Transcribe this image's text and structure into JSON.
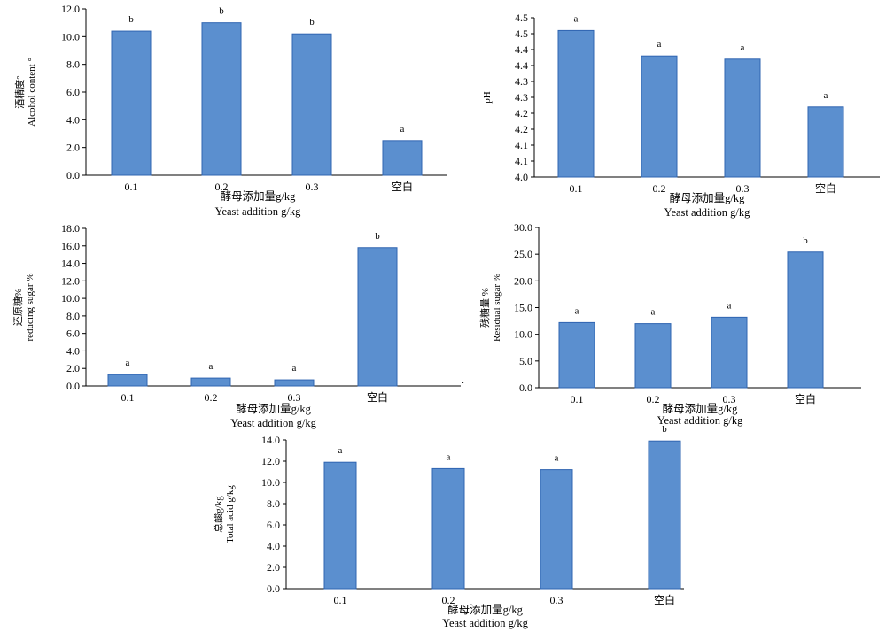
{
  "chart_data": [
    {
      "type": "bar",
      "categories": [
        "0.1",
        "0.2",
        "0.3",
        "空白"
      ],
      "values": [
        10.4,
        11.0,
        10.2,
        2.5
      ],
      "significance": [
        "b",
        "b",
        "b",
        "a"
      ],
      "ylabel": [
        "酒精度°",
        "Alcohol content °"
      ],
      "xlabel": [
        "酵母添加量g/kg",
        "Yeast addition g/kg"
      ],
      "ylim": [
        0,
        12
      ],
      "yticks": [
        "0.0",
        "2.0",
        "4.0",
        "6.0",
        "8.0",
        "10.0",
        "12.0"
      ],
      "color": "#5b8fcf"
    },
    {
      "type": "bar",
      "categories": [
        "0.1",
        "0.2",
        "0.3",
        "空白"
      ],
      "values": [
        4.46,
        4.38,
        4.37,
        4.22
      ],
      "significance": [
        "a",
        "a",
        "a",
        "a"
      ],
      "ylabel": [
        "pH"
      ],
      "xlabel": [
        "酵母添加量g/kg",
        "Yeast addition g/kg"
      ],
      "ylim": [
        4.0,
        4.5
      ],
      "yticks": [
        "4.0",
        "4.1",
        "4.1",
        "4.2",
        "4.2",
        "4.3",
        "4.3",
        "4.4",
        "4.4",
        "4.5",
        "4.5"
      ],
      "color": "#5b8fcf"
    },
    {
      "type": "bar",
      "categories": [
        "0.1",
        "0.2",
        "0.3",
        "空白"
      ],
      "values": [
        1.3,
        0.9,
        0.7,
        15.8
      ],
      "significance": [
        "a",
        "a",
        "a",
        "b"
      ],
      "ylabel": [
        "还原糖%",
        "reducing sugar %"
      ],
      "xlabel": [
        "酵母添加量g/kg",
        "Yeast addition g/kg"
      ],
      "ylim": [
        0,
        18
      ],
      "yticks": [
        "0.0",
        "2.0",
        "4.0",
        "6.0",
        "8.0",
        "10.0",
        "12.0",
        "14.0",
        "16.0",
        "18.0"
      ],
      "color": "#5b8fcf"
    },
    {
      "type": "bar",
      "categories": [
        "0.1",
        "0.2",
        "0.3",
        "空白"
      ],
      "values": [
        12.2,
        12.0,
        13.2,
        25.4
      ],
      "significance": [
        "a",
        "a",
        "a",
        "b"
      ],
      "ylabel": [
        "残糖量 %",
        "Residual sugar %"
      ],
      "xlabel": [
        "酵母添加量g/kg",
        "Yeast addition g/kg"
      ],
      "ylim": [
        0,
        30
      ],
      "yticks": [
        "0.0",
        "5.0",
        "10.0",
        "15.0",
        "20.0",
        "25.0",
        "30.0"
      ],
      "color": "#5b8fcf"
    },
    {
      "type": "bar",
      "categories": [
        "0.1",
        "0.2",
        "0.3",
        "空白"
      ],
      "values": [
        11.9,
        11.3,
        11.2,
        13.9
      ],
      "significance": [
        "a",
        "a",
        "a",
        "b"
      ],
      "ylabel": [
        "总酸g/kg",
        "Total acid g/kg"
      ],
      "xlabel": [
        "酵母添加量g/kg",
        "Yeast addition g/kg"
      ],
      "ylim": [
        0,
        14
      ],
      "yticks": [
        "0.0",
        "2.0",
        "4.0",
        "6.0",
        "8.0",
        "10.0",
        "12.0",
        "14.0"
      ],
      "color": "#5b8fcf"
    }
  ]
}
